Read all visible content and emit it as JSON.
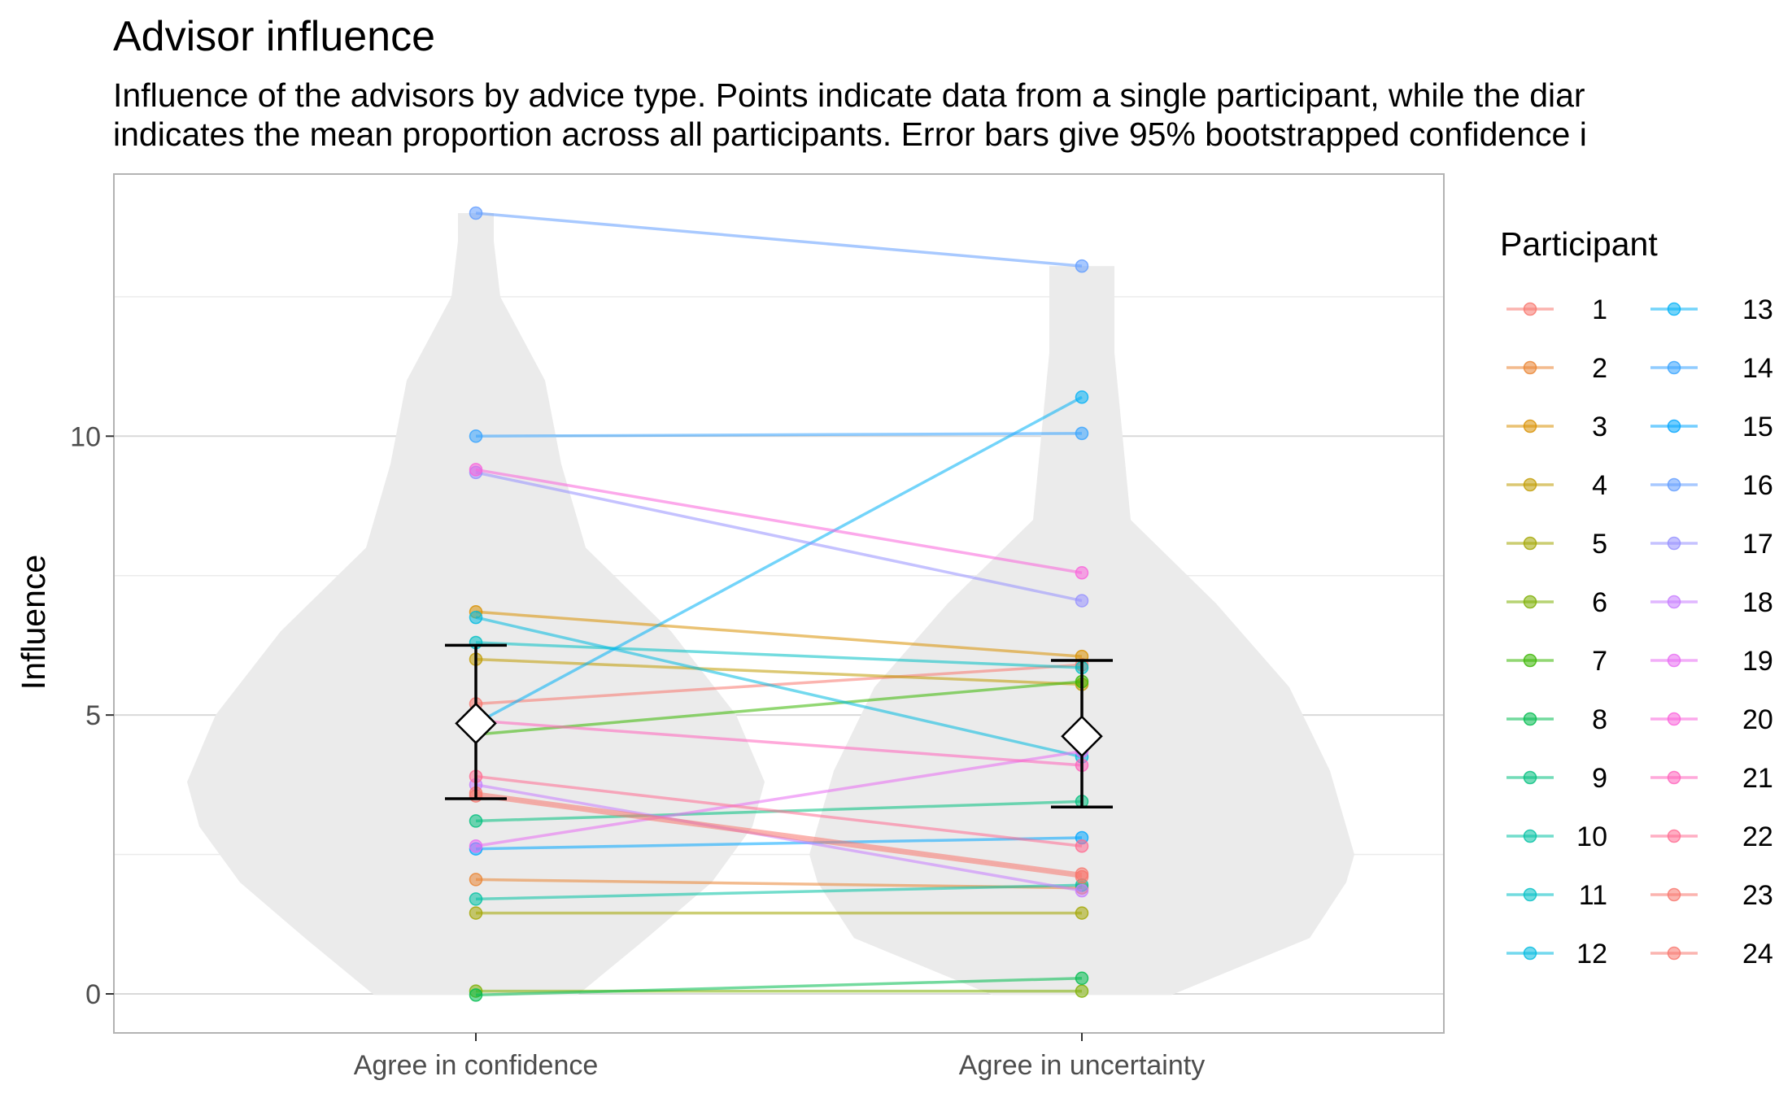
{
  "chart_data": {
    "type": "scatter",
    "title": "Advisor influence",
    "subtitle_lines": [
      "Influence of the advisors by advice type. Points indicate data from a single participant, while the diar",
      "indicates the mean proportion across all participants. Error bars give 95% bootstrapped confidence i"
    ],
    "xlabel": "",
    "ylabel": "Influence",
    "categories": [
      "Agree in confidence",
      "Agree in uncertainty"
    ],
    "ylim": [
      -0.7,
      14.7
    ],
    "y_ticks": [
      0,
      5,
      10
    ],
    "grid": true,
    "legend": {
      "title": "Participant",
      "placement": "right",
      "columns": 2
    },
    "series": [
      {
        "name": "1",
        "color": "#F8766D",
        "values": [
          5.2,
          5.9
        ]
      },
      {
        "name": "2",
        "color": "#EA8331",
        "values": [
          2.05,
          1.9
        ]
      },
      {
        "name": "3",
        "color": "#D89000",
        "values": [
          6.85,
          6.05
        ]
      },
      {
        "name": "4",
        "color": "#C09B00",
        "values": [
          6.0,
          5.55
        ]
      },
      {
        "name": "5",
        "color": "#A3A500",
        "values": [
          1.45,
          1.45
        ]
      },
      {
        "name": "6",
        "color": "#7CAE00",
        "values": [
          0.05,
          0.05
        ]
      },
      {
        "name": "7",
        "color": "#39B600",
        "values": [
          4.65,
          5.6
        ]
      },
      {
        "name": "8",
        "color": "#00BB4E",
        "values": [
          -0.02,
          0.28
        ]
      },
      {
        "name": "9",
        "color": "#00BF7D",
        "values": [
          3.1,
          3.45
        ]
      },
      {
        "name": "10",
        "color": "#00C1A3",
        "values": [
          1.7,
          1.95
        ]
      },
      {
        "name": "11",
        "color": "#00BFC4",
        "values": [
          6.3,
          5.85
        ]
      },
      {
        "name": "12",
        "color": "#00BAE0",
        "values": [
          6.75,
          4.25
        ]
      },
      {
        "name": "13",
        "color": "#00B0F6",
        "values": [
          4.85,
          10.7
        ]
      },
      {
        "name": "14",
        "color": "#35A2FF",
        "values": [
          10.0,
          10.05
        ]
      },
      {
        "name": "15",
        "color": "#00A5FF",
        "values": [
          2.6,
          2.8
        ]
      },
      {
        "name": "16",
        "color": "#619CFF",
        "values": [
          14.0,
          13.05
        ]
      },
      {
        "name": "17",
        "color": "#9590FF",
        "values": [
          9.35,
          7.05
        ]
      },
      {
        "name": "18",
        "color": "#C77CFF",
        "values": [
          3.75,
          1.85
        ]
      },
      {
        "name": "19",
        "color": "#E76BF3",
        "values": [
          2.65,
          4.35
        ]
      },
      {
        "name": "20",
        "color": "#FA62DB",
        "values": [
          9.4,
          7.55
        ]
      },
      {
        "name": "21",
        "color": "#FF62BC",
        "values": [
          4.9,
          4.1
        ]
      },
      {
        "name": "22",
        "color": "#FF6C91",
        "values": [
          3.9,
          2.65
        ]
      },
      {
        "name": "23",
        "color": "#F8766D",
        "values": [
          3.6,
          2.15
        ]
      },
      {
        "name": "24",
        "color": "#F8766D",
        "values": [
          3.55,
          2.1
        ]
      }
    ],
    "summary": {
      "means": [
        4.85,
        4.62
      ],
      "ci_low": [
        3.5,
        3.35
      ],
      "ci_high": [
        6.25,
        5.98
      ]
    },
    "colors": {
      "violin": "#ebebeb",
      "grid": "#d9d9d9",
      "panel_border": "#b3b3b3",
      "error_bar": "#000000",
      "mean_marker_fill": "#ffffff"
    }
  }
}
